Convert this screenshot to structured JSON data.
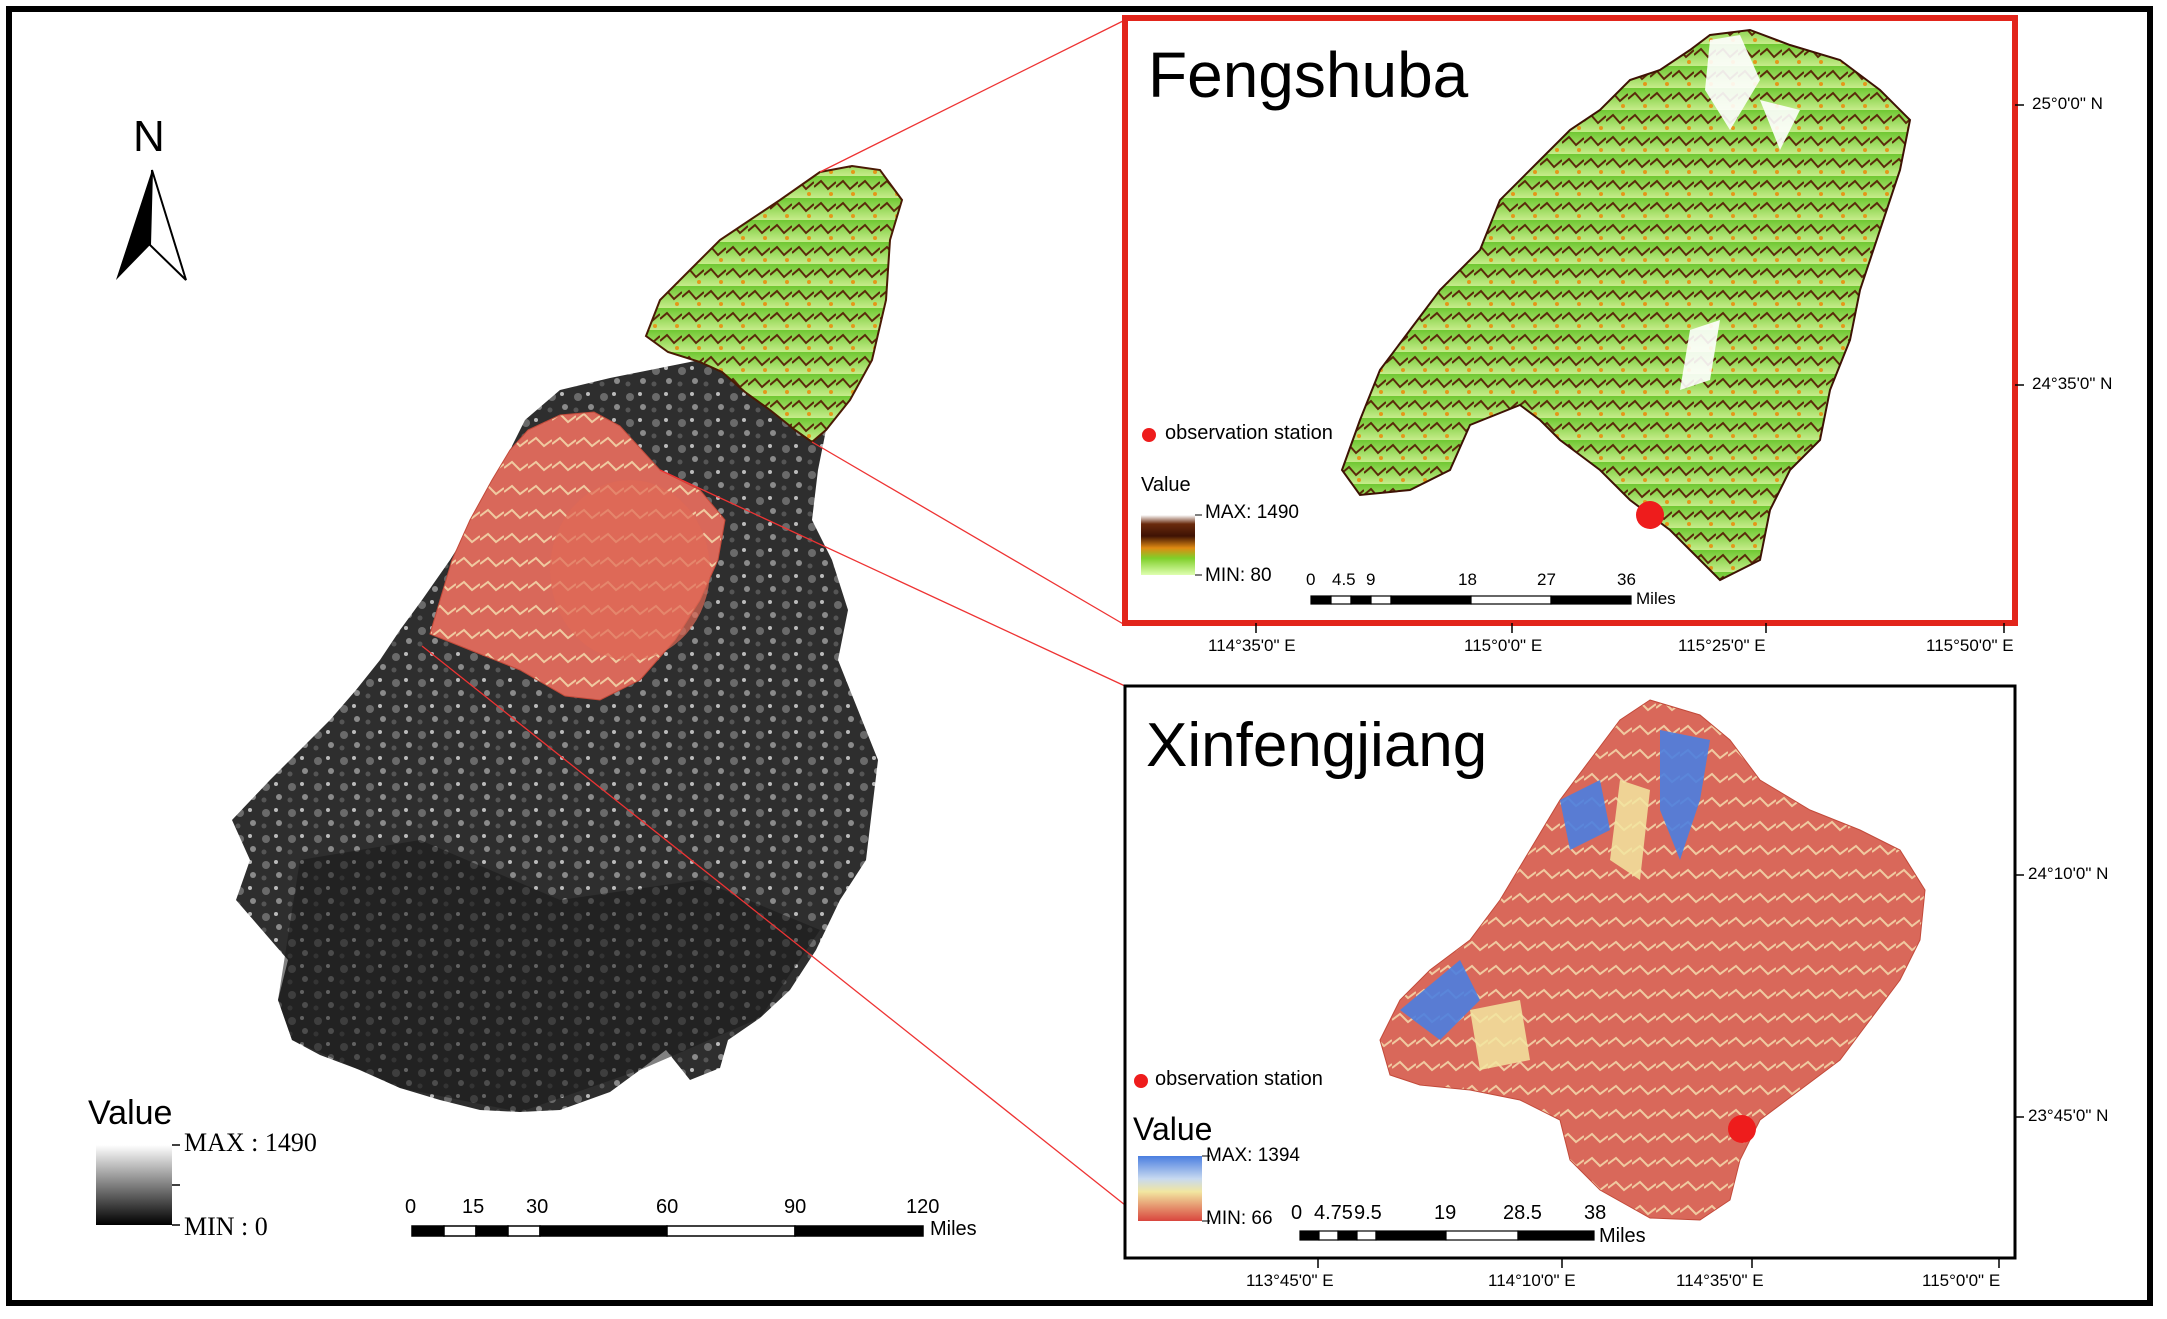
{
  "north_arrow": {
    "label": "N"
  },
  "main_map": {
    "legend": {
      "title": "Value",
      "max_label": "MAX : 1490",
      "min_label": "MIN : 0"
    },
    "scale_bar": {
      "ticks": [
        "0",
        "15",
        "30",
        "60",
        "90",
        "120"
      ],
      "unit": "Miles"
    }
  },
  "fengshuba": {
    "title": "Fengshuba",
    "station_legend": "observation station",
    "legend": {
      "title": "Value",
      "max_label": "MAX:  1490",
      "min_label": "MIN:  80"
    },
    "scale_bar": {
      "ticks": [
        "0",
        "4.5",
        "9",
        "18",
        "27",
        "36"
      ],
      "unit": "Miles"
    },
    "lat_labels": [
      "25°0'0\" N",
      "24°35'0\" N"
    ],
    "lon_labels": [
      "114°35'0\" E",
      "115°0'0\" E",
      "115°25'0\" E",
      "115°50'0\" E"
    ],
    "colors": {
      "frame": "#e2251b",
      "station": "#ee1c1c"
    }
  },
  "xinfengjiang": {
    "title": "Xinfengjiang",
    "station_legend": "observation station",
    "legend": {
      "title": "Value",
      "max_label": "MAX:  1394",
      "min_label": "MIN:  66"
    },
    "scale_bar": {
      "ticks": [
        "0",
        "4.75",
        "9.5",
        "19",
        "28.5",
        "38"
      ],
      "unit": "Miles"
    },
    "lat_labels": [
      "24°10'0\" N",
      "23°45'0\" N"
    ],
    "lon_labels": [
      "113°45'0\" E",
      "114°10'0\" E",
      "114°35'0\" E",
      "115°0'0\" E"
    ],
    "colors": {
      "frame": "#000000",
      "station": "#ee1c1c"
    }
  }
}
